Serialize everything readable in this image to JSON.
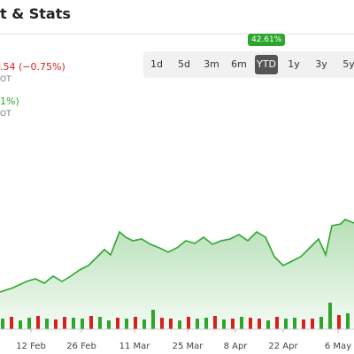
{
  "header": {
    "title": "t & Stats"
  },
  "quotes": [
    {
      "change": ".54 (−0.75%)",
      "color": "#d92020",
      "note": "OT"
    },
    {
      "change": "1%)",
      "color": "#2ea62e",
      "note": "OT"
    }
  ],
  "range_selector": {
    "badge": "42.61%",
    "buttons": [
      "1d",
      "5d",
      "3m",
      "6m",
      "YTD",
      "1y",
      "3y",
      "5y"
    ],
    "active": 4
  },
  "chart_data": {
    "type": "area",
    "color": "#2ea62e",
    "x": [
      0,
      15,
      30,
      40,
      50,
      60,
      70,
      80,
      90,
      100,
      110,
      118,
      125,
      135,
      142,
      150,
      160,
      170,
      180,
      190,
      200,
      210,
      220,
      230,
      240,
      250,
      260,
      270,
      280,
      290,
      300,
      310,
      320,
      330,
      340,
      350,
      360,
      368,
      375,
      385,
      390,
      400
    ],
    "values": [
      70,
      75,
      82,
      85,
      80,
      88,
      82,
      88,
      95,
      100,
      110,
      118,
      112,
      138,
      132,
      128,
      130,
      124,
      120,
      115,
      120,
      128,
      125,
      132,
      124,
      128,
      130,
      135,
      128,
      138,
      132,
      110,
      100,
      105,
      110,
      120,
      130,
      112,
      145,
      147,
      152,
      148
    ],
    "xlim": [
      0,
      400
    ],
    "ylim": [
      0,
      400
    ],
    "xticks": [
      {
        "value": 35,
        "label": "12 Feb"
      },
      {
        "value": 92,
        "label": "26 Feb"
      },
      {
        "value": 152,
        "label": "11 Mar"
      },
      {
        "value": 212,
        "label": "25 Mar"
      },
      {
        "value": 266,
        "label": "8 Apr"
      },
      {
        "value": 320,
        "label": "22 Apr"
      },
      {
        "value": 382,
        "label": "6 May"
      }
    ],
    "volume": {
      "x": [
        3,
        13,
        23,
        33,
        43,
        53,
        63,
        73,
        83,
        93,
        103,
        113,
        123,
        133,
        143,
        153,
        163,
        173,
        183,
        193,
        203,
        213,
        223,
        233,
        243,
        253,
        263,
        273,
        283,
        293,
        303,
        313,
        323,
        333,
        343,
        353,
        363,
        373,
        383,
        393
      ],
      "values": [
        12,
        14,
        10,
        13,
        15,
        12,
        11,
        14,
        13,
        12,
        15,
        14,
        10,
        13,
        12,
        14,
        11,
        22,
        13,
        12,
        10,
        14,
        12,
        13,
        15,
        11,
        12,
        14,
        13,
        12,
        10,
        14,
        12,
        13,
        11,
        12,
        14,
        30,
        16,
        18
      ],
      "colors": [
        "#2ea62e",
        "#d92020",
        "#2ea62e",
        "#2ea62e",
        "#d92020",
        "#2ea62e",
        "#d92020",
        "#d92020",
        "#2ea62e",
        "#2ea62e",
        "#d92020",
        "#2ea62e",
        "#2ea62e",
        "#d92020",
        "#2ea62e",
        "#d92020",
        "#2ea62e",
        "#2ea62e",
        "#d92020",
        "#d92020",
        "#2ea62e",
        "#d92020",
        "#2ea62e",
        "#2ea62e",
        "#d92020",
        "#2ea62e",
        "#d92020",
        "#2ea62e",
        "#d92020",
        "#d92020",
        "#2ea62e",
        "#d92020",
        "#2ea62e",
        "#2ea62e",
        "#d92020",
        "#d92020",
        "#2ea62e",
        "#2ea62e",
        "#d92020",
        "#2ea62e"
      ],
      "ylim": [
        0,
        100
      ]
    }
  }
}
